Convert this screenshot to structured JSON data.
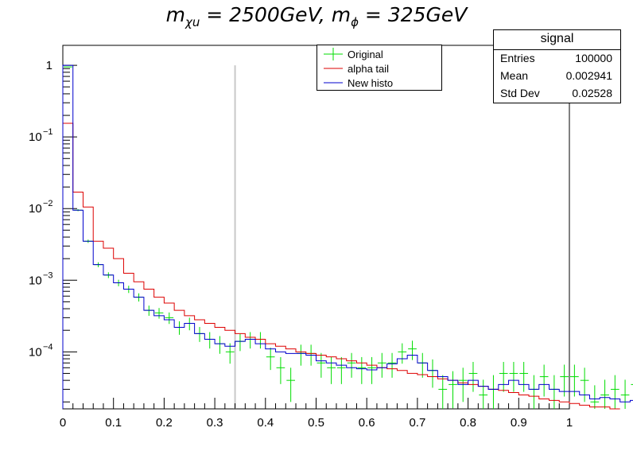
{
  "title": {
    "m_sym": "m",
    "m_sub1": "χu",
    "part1": " = 2500",
    "unit": "GeV",
    "sep": ", ",
    "phi_sub": "ϕ",
    "part2": " = 325"
  },
  "legend": {
    "original": "Original",
    "alpha_tail": "alpha tail",
    "new_histo": "New histo"
  },
  "stats": {
    "title": "signal",
    "rows": [
      {
        "label": "Entries",
        "value": "100000"
      },
      {
        "label": "Mean",
        "value": "0.002941"
      },
      {
        "label": "Std Dev",
        "value": "0.02528"
      }
    ]
  },
  "colors": {
    "original": "#00dd00",
    "alpha_tail": "#dd0000",
    "new_histo": "#0000cc",
    "cut_line": "#c8c8c8"
  },
  "chart_data": {
    "type": "line",
    "log_y": true,
    "xlim": [
      0,
      1
    ],
    "ylim": [
      1.6e-05,
      1.9
    ],
    "bin_width": 0.02,
    "x_ticks": [
      "0",
      "0.1",
      "0.2",
      "0.3",
      "0.4",
      "0.5",
      "0.6",
      "0.7",
      "0.8",
      "0.9",
      "1"
    ],
    "y_ticks": [
      {
        "value": 1,
        "label": "1",
        "sup": ""
      },
      {
        "value": 0.1,
        "label": "10",
        "sup": "−1"
      },
      {
        "value": 0.01,
        "label": "10",
        "sup": "−2"
      },
      {
        "value": 0.001,
        "label": "10",
        "sup": "−3"
      },
      {
        "value": 0.0001,
        "label": "10",
        "sup": "−4"
      }
    ],
    "cut_line_x": 0.34,
    "series": [
      {
        "name": "Original",
        "style": "markers",
        "values": [
          0.95,
          0.0095,
          0.0035,
          0.00165,
          0.00118,
          0.00092,
          0.00075,
          0.00058,
          0.00038,
          0.00035,
          0.0003,
          0.00022,
          0.00025,
          0.00018,
          0.00015,
          0.00013,
          0.0001,
          0.00014,
          0.00015,
          0.00015,
          8.5e-05,
          6e-05,
          4e-05,
          9.5e-05,
          9.5e-05,
          7e-05,
          6e-05,
          6e-05,
          7e-05,
          6e-05,
          6e-05,
          7e-05,
          7e-05,
          0.0001,
          0.00011,
          7e-05,
          5.5e-05,
          3e-05,
          3.5e-05,
          4e-05,
          5e-05,
          2.5e-05,
          3e-05,
          5e-05,
          5e-05,
          5e-05,
          3e-05,
          4.5e-05,
          3e-05,
          4.5e-05,
          4.5e-05,
          4e-05,
          2e-05,
          2.5e-05,
          3e-05,
          2.5e-05,
          3.5e-05,
          2.5e-05,
          2.5e-05,
          2e-05,
          1.8e-05,
          2e-05,
          2e-05,
          1.8e-05,
          1.7e-05
        ]
      },
      {
        "name": "alpha tail",
        "style": "step",
        "values": [
          0.155,
          0.017,
          0.0105,
          0.0035,
          0.0028,
          0.002,
          0.00125,
          0.00095,
          0.00075,
          0.00058,
          0.00048,
          0.00038,
          0.00032,
          0.00028,
          0.00025,
          0.00022,
          0.0002,
          0.00018,
          0.00016,
          0.00015,
          0.00013,
          0.00012,
          0.00011,
          0.0001,
          9.5e-05,
          9e-05,
          8.5e-05,
          8e-05,
          7.5e-05,
          7e-05,
          6.5e-05,
          6e-05,
          5.8e-05,
          5.5e-05,
          5e-05,
          4.8e-05,
          4.5e-05,
          4.2e-05,
          4e-05,
          3.7e-05,
          3.5e-05,
          3.3e-05,
          3e-05,
          2.9e-05,
          2.7e-05,
          2.5e-05,
          2.4e-05,
          2.2e-05,
          2.1e-05,
          2e-05,
          1.9e-05,
          1.8e-05,
          1.7e-05,
          1.7e-05,
          1.6e-05
        ]
      },
      {
        "name": "New histo",
        "style": "step",
        "values": [
          1.0,
          0.0095,
          0.0035,
          0.00165,
          0.00118,
          0.00092,
          0.00075,
          0.00058,
          0.00038,
          0.00032,
          0.00028,
          0.00022,
          0.00025,
          0.00018,
          0.00015,
          0.00013,
          0.00012,
          0.00014,
          0.00015,
          0.00013,
          0.00011,
          0.0001,
          9.5e-05,
          9.5e-05,
          9e-05,
          7.5e-05,
          7e-05,
          6.5e-05,
          6e-05,
          5.8e-05,
          5.6e-05,
          6e-05,
          6.8e-05,
          8e-05,
          9e-05,
          7e-05,
          5.5e-05,
          4.5e-05,
          4e-05,
          3.5e-05,
          4e-05,
          3.3e-05,
          3e-05,
          3.5e-05,
          4e-05,
          3.5e-05,
          3e-05,
          3.5e-05,
          3e-05,
          2.8e-05,
          2.8e-05,
          2.5e-05,
          2.2e-05,
          2.3e-05,
          2.2e-05,
          2e-05,
          2.1e-05,
          1.9e-05,
          1.8e-05,
          1.8e-05,
          1.7e-05,
          1.7e-05,
          1.7e-05,
          1.6e-05,
          1.6e-05
        ]
      }
    ]
  }
}
